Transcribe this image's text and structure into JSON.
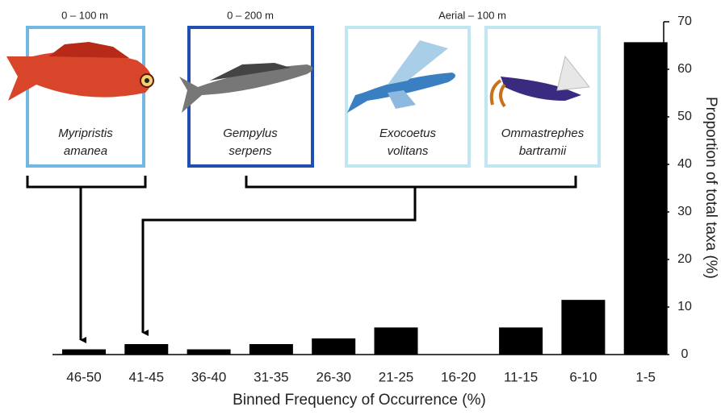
{
  "chart_data": {
    "type": "bar",
    "x_label": "Binned Frequency of Occurrence (%)",
    "y_label": "Proportion of total taxa (%)",
    "categories": [
      "46-50",
      "41-45",
      "36-40",
      "31-35",
      "26-30",
      "21-25",
      "16-20",
      "11-15",
      "6-10",
      "1-5"
    ],
    "values": [
      1.1,
      2.2,
      1.1,
      2.2,
      3.4,
      5.7,
      0,
      5.7,
      11.5,
      65.7
    ],
    "color": "#000000",
    "ylim": [
      0,
      70
    ],
    "yticks": [
      0,
      10,
      20,
      30,
      40,
      50,
      60,
      70
    ],
    "y_axis_side": "right",
    "annotations": [
      "0 – 100 m",
      "0 – 200 m",
      "Aerial – 100 m"
    ],
    "species": [
      [
        "Myripristis",
        "amanea"
      ],
      [
        "Gempylus",
        "serpens"
      ],
      [
        "Exocoetus",
        "volitans"
      ],
      [
        "Ommastrephes",
        "bartramii"
      ]
    ]
  }
}
